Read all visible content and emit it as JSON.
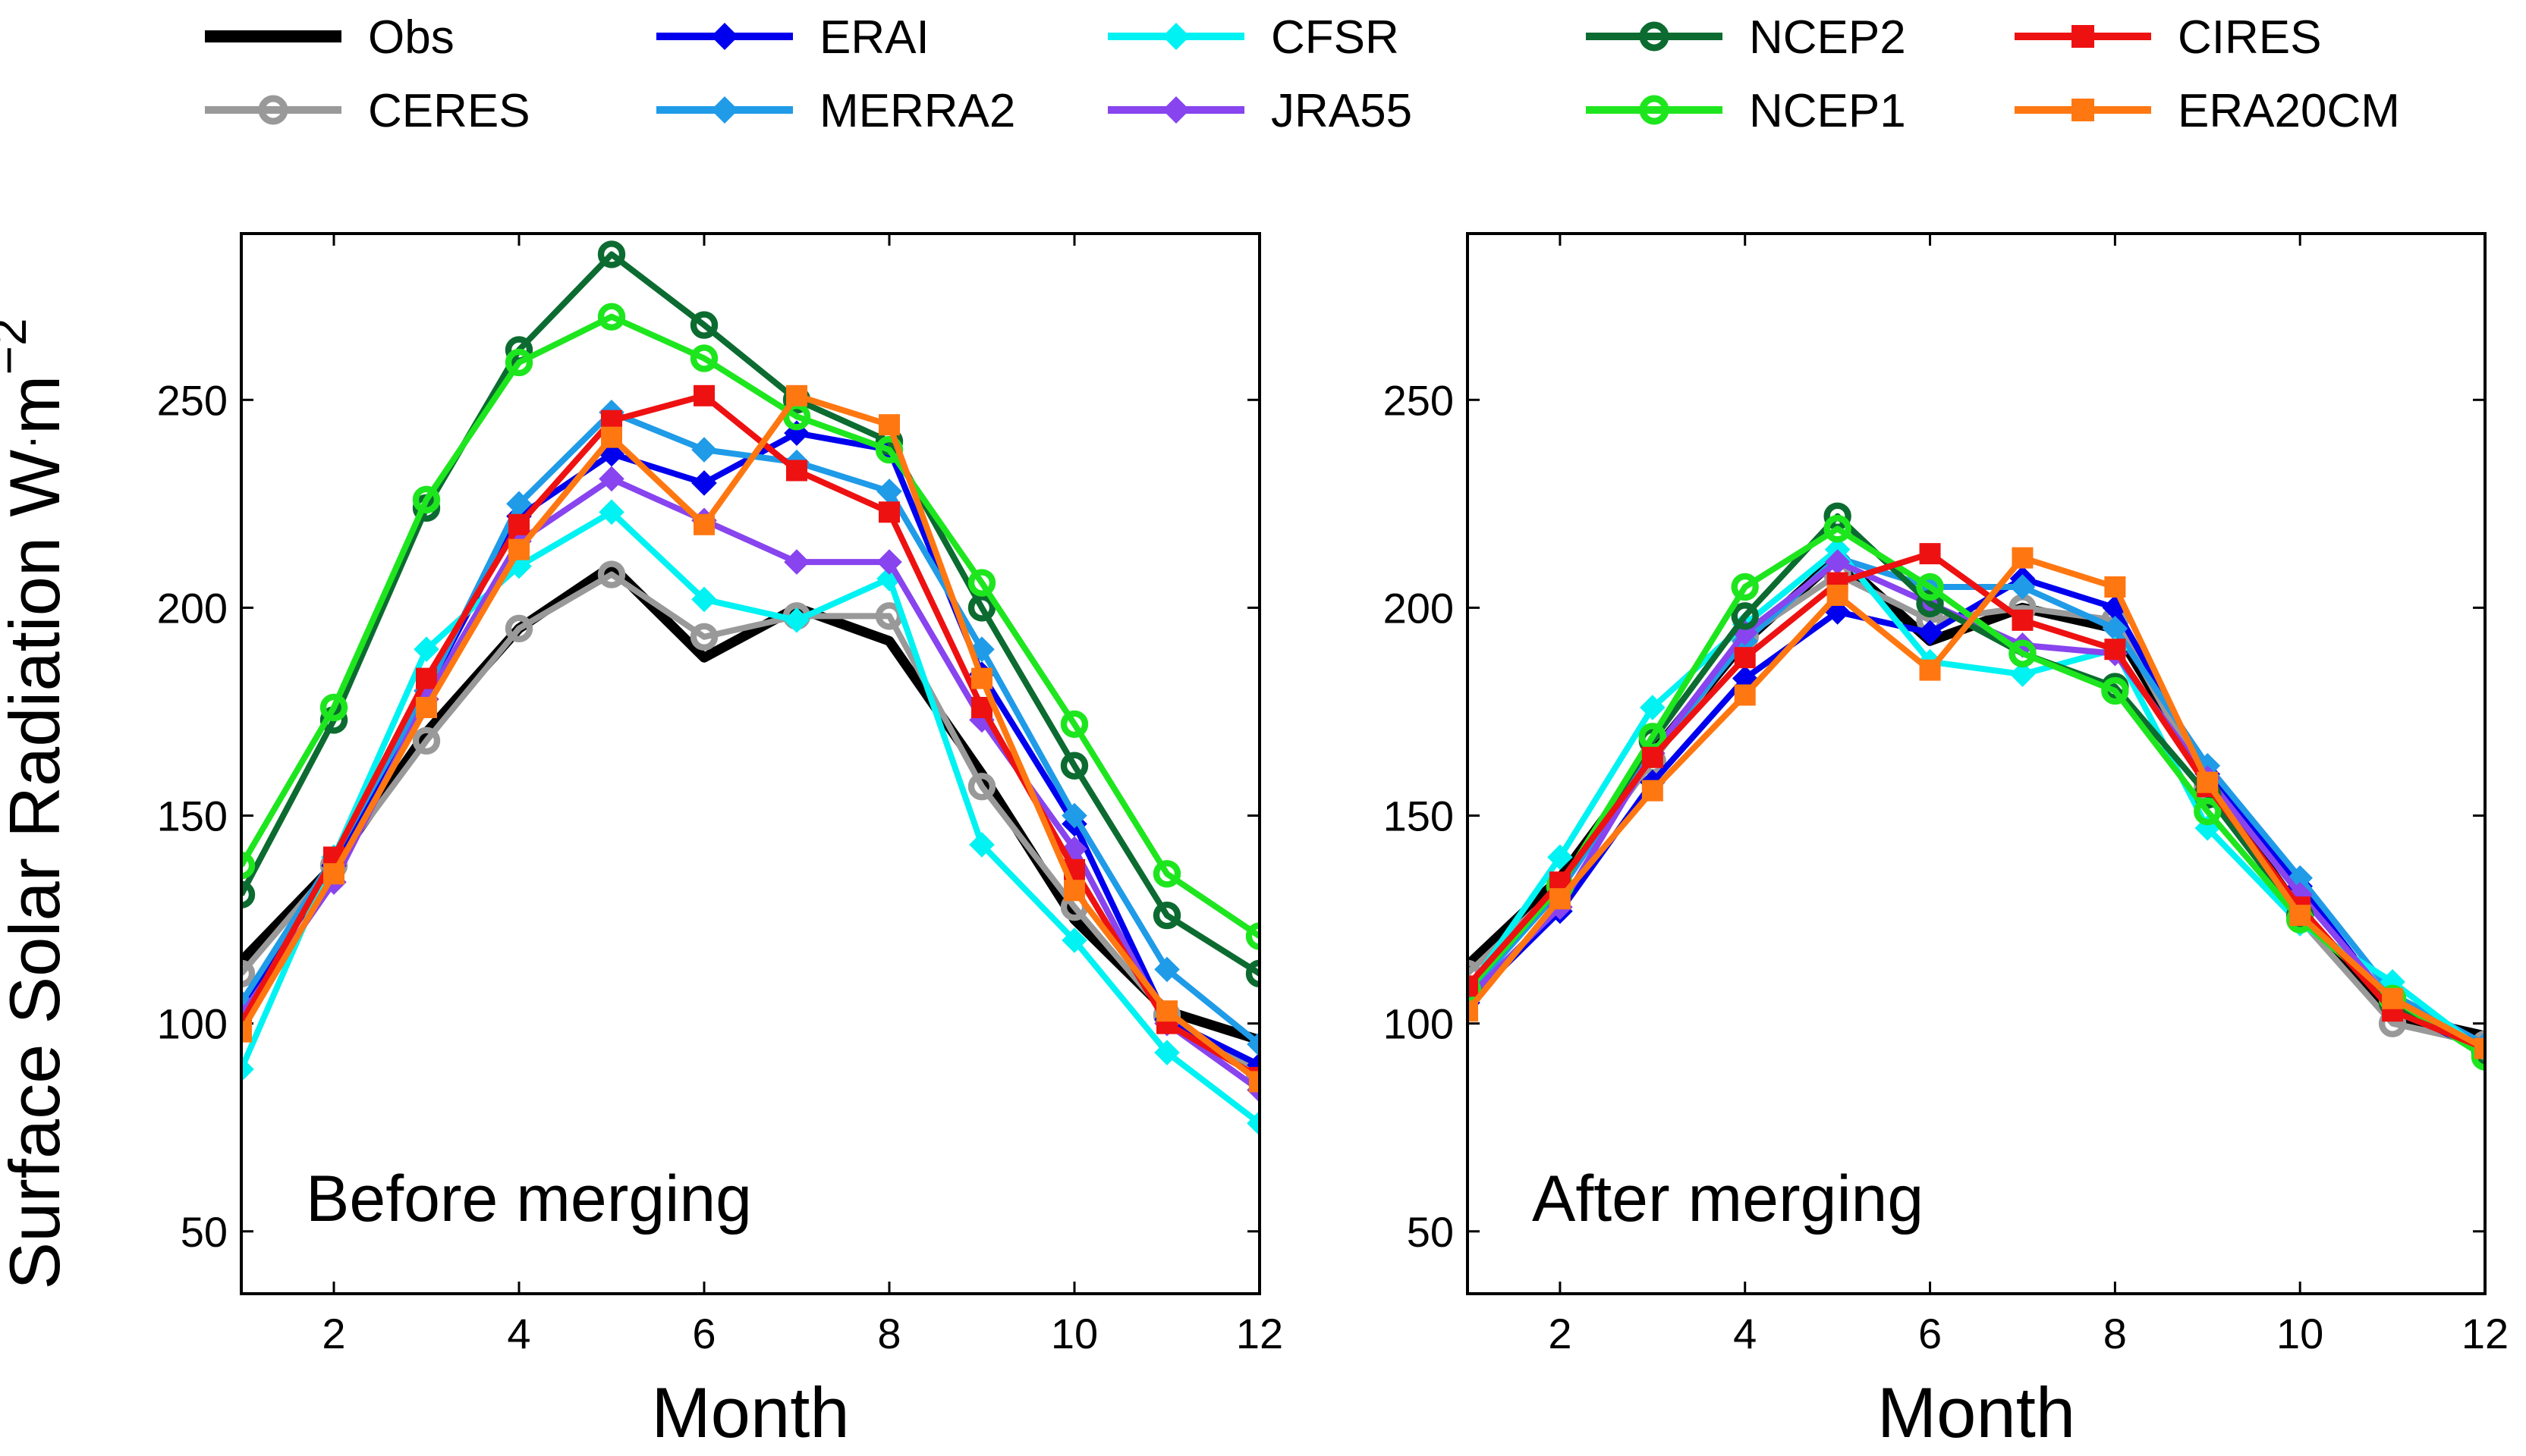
{
  "ylabel_main": "Surface Solar Radiation W",
  "ylabel_dot": "·",
  "ylabel_unit": "m",
  "ylabel_exp": "−2",
  "chart_data": [
    {
      "type": "line",
      "title": "Before merging",
      "xlabel": "Month",
      "ylabel": "Surface Solar Radiation W·m−2",
      "xlim": [
        1,
        12
      ],
      "ylim": [
        35,
        290
      ],
      "xticks": [
        2,
        4,
        6,
        8,
        10,
        12
      ],
      "yticks": [
        50,
        100,
        150,
        200,
        250
      ],
      "x": [
        1,
        2,
        3,
        4,
        5,
        6,
        7,
        8,
        9,
        10,
        11,
        12
      ],
      "series": [
        {
          "name": "Obs",
          "marker": "none",
          "color": "#000000",
          "values": [
            115,
            138,
            170,
            195,
            210,
            188,
            200,
            192,
            160,
            125,
            103,
            96
          ]
        },
        {
          "name": "CERES",
          "marker": "circle",
          "color": "#999999",
          "values": [
            112,
            138,
            168,
            195,
            208,
            193,
            198,
            198,
            157,
            128,
            102,
            88
          ]
        },
        {
          "name": "ERAI",
          "marker": "diamond",
          "color": "#0000ee",
          "values": [
            103,
            138,
            180,
            222,
            237,
            230,
            242,
            238,
            184,
            148,
            101,
            90
          ]
        },
        {
          "name": "MERRA2",
          "marker": "diamond",
          "color": "#1f9be8",
          "values": [
            105,
            140,
            180,
            225,
            247,
            238,
            235,
            228,
            190,
            150,
            113,
            95
          ]
        },
        {
          "name": "CFSR",
          "marker": "diamond",
          "color": "#00f2f2",
          "values": [
            89,
            140,
            190,
            210,
            223,
            202,
            197,
            207,
            143,
            120,
            93,
            76
          ]
        },
        {
          "name": "JRA55",
          "marker": "diamond",
          "color": "#8844ee",
          "values": [
            102,
            134,
            178,
            216,
            231,
            221,
            211,
            211,
            173,
            142,
            100,
            84
          ]
        },
        {
          "name": "NCEP2",
          "marker": "circle",
          "color": "#0c6b30",
          "values": [
            131,
            173,
            224,
            262,
            285,
            268,
            250,
            240,
            200,
            162,
            126,
            112
          ]
        },
        {
          "name": "NCEP1",
          "marker": "circle",
          "color": "#1ee61e",
          "values": [
            138,
            176,
            226,
            259,
            270,
            260,
            246,
            238,
            206,
            172,
            136,
            121
          ]
        },
        {
          "name": "CIRES",
          "marker": "square",
          "color": "#ee1111",
          "values": [
            100,
            140,
            183,
            220,
            245,
            251,
            233,
            223,
            176,
            137,
            100,
            87
          ]
        },
        {
          "name": "ERA20CM",
          "marker": "square",
          "color": "#ff7711",
          "values": [
            98,
            136,
            176,
            214,
            241,
            220,
            251,
            244,
            183,
            132,
            103,
            86
          ]
        }
      ]
    },
    {
      "type": "line",
      "title": "After merging",
      "xlabel": "Month",
      "ylabel": "",
      "xlim": [
        1,
        12
      ],
      "ylim": [
        35,
        290
      ],
      "xticks": [
        2,
        4,
        6,
        8,
        10,
        12
      ],
      "yticks": [
        50,
        100,
        150,
        200,
        250
      ],
      "x": [
        1,
        2,
        3,
        4,
        5,
        6,
        7,
        8,
        9,
        10,
        11,
        12
      ],
      "series": [
        {
          "name": "Obs",
          "marker": "none",
          "color": "#000000",
          "values": [
            114,
            135,
            165,
            192,
            212,
            192,
            200,
            195,
            158,
            127,
            102,
            97
          ]
        },
        {
          "name": "CERES",
          "marker": "circle",
          "color": "#999999",
          "values": [
            112,
            133,
            163,
            193,
            208,
            197,
            200,
            197,
            157,
            125,
            100,
            95
          ]
        },
        {
          "name": "ERAI",
          "marker": "diamond",
          "color": "#0000ee",
          "values": [
            105,
            127,
            158,
            183,
            199,
            194,
            207,
            200,
            160,
            133,
            104,
            93
          ]
        },
        {
          "name": "MERRA2",
          "marker": "diamond",
          "color": "#1f9be8",
          "values": [
            107,
            132,
            165,
            192,
            212,
            205,
            205,
            195,
            162,
            135,
            107,
            95
          ]
        },
        {
          "name": "CFSR",
          "marker": "diamond",
          "color": "#00f2f2",
          "values": [
            108,
            140,
            176,
            196,
            214,
            187,
            184,
            190,
            147,
            124,
            110,
            93
          ]
        },
        {
          "name": "JRA55",
          "marker": "diamond",
          "color": "#8844ee",
          "values": [
            106,
            128,
            165,
            194,
            211,
            201,
            191,
            189,
            159,
            131,
            105,
            94
          ]
        },
        {
          "name": "NCEP2",
          "marker": "circle",
          "color": "#0c6b30",
          "values": [
            108,
            133,
            168,
            198,
            222,
            201,
            189,
            181,
            155,
            126,
            105,
            93
          ]
        },
        {
          "name": "NCEP1",
          "marker": "circle",
          "color": "#1ee61e",
          "values": [
            108,
            133,
            169,
            205,
            219,
            205,
            189,
            180,
            151,
            125,
            106,
            92
          ]
        },
        {
          "name": "CIRES",
          "marker": "square",
          "color": "#ee1111",
          "values": [
            109,
            134,
            164,
            188,
            206,
            213,
            197,
            190,
            157,
            128,
            103,
            94
          ]
        },
        {
          "name": "ERA20CM",
          "marker": "square",
          "color": "#ff7711",
          "values": [
            103,
            130,
            156,
            179,
            203,
            185,
            212,
            205,
            158,
            126,
            106,
            94
          ]
        }
      ]
    }
  ]
}
